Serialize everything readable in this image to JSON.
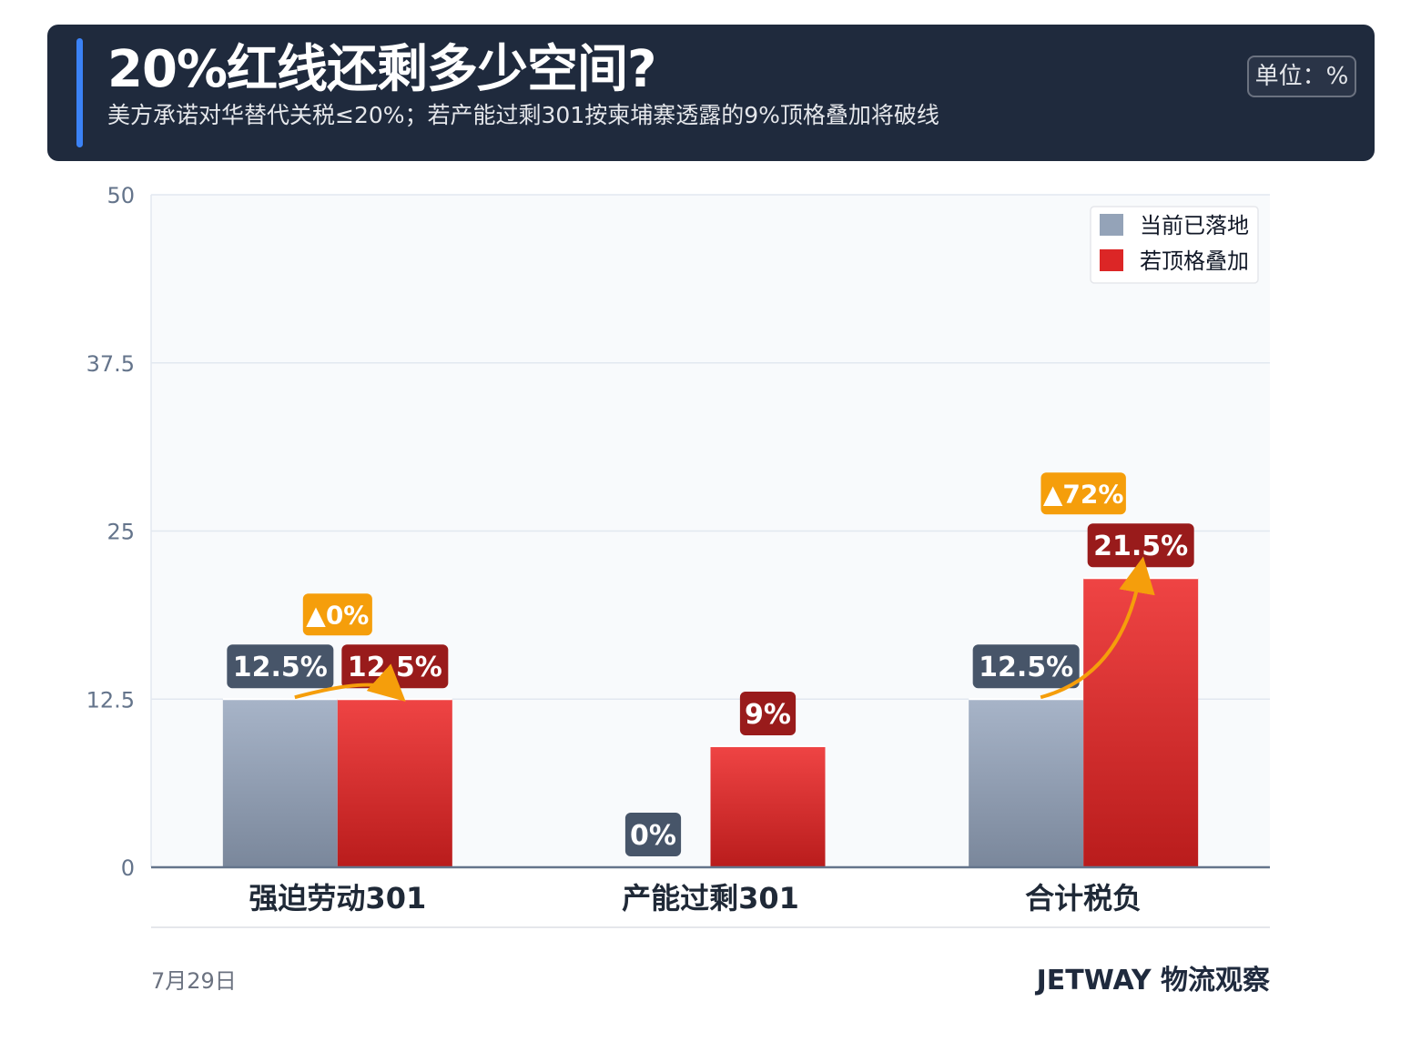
{
  "header": {
    "title": "20%红线还剩多少空间?",
    "subtitle": "美方承诺对华替代关税≤20%；若产能过剩301按柬埔寨透露的9%顶格叠加将破线",
    "unit": "单位：%"
  },
  "colors": {
    "header_bg": "#1f2a3d",
    "accent": "#3b82f6",
    "current": "#94a3b8",
    "maxed": "#dc2626",
    "label_current_bg": "#475569",
    "label_maxed_bg": "#991b1b",
    "change_bg": "#f59e0b"
  },
  "chart_data": {
    "type": "bar",
    "categories": [
      "强迫劳动301",
      "产能过剩301",
      "合计税负"
    ],
    "series": [
      {
        "name": "当前已落地",
        "values": [
          12.5,
          0,
          12.5
        ],
        "labels": [
          "12.5%",
          "0%",
          "12.5%"
        ]
      },
      {
        "name": "若顶格叠加",
        "values": [
          12.5,
          9,
          21.5
        ],
        "labels": [
          "12.5%",
          "9%",
          "21.5%"
        ]
      }
    ],
    "change_annotations": [
      {
        "category": "强迫劳动301",
        "text": "▲0%"
      },
      {
        "category": "合计税负",
        "text": "▲72%"
      }
    ],
    "ylim": [
      0,
      50
    ],
    "yticks": [
      "0",
      "12.5",
      "25",
      "37.5",
      "50"
    ],
    "grid": true,
    "legend": "top-right"
  },
  "footer": {
    "date": "7月29日",
    "brand": "JETWAY 物流观察"
  }
}
